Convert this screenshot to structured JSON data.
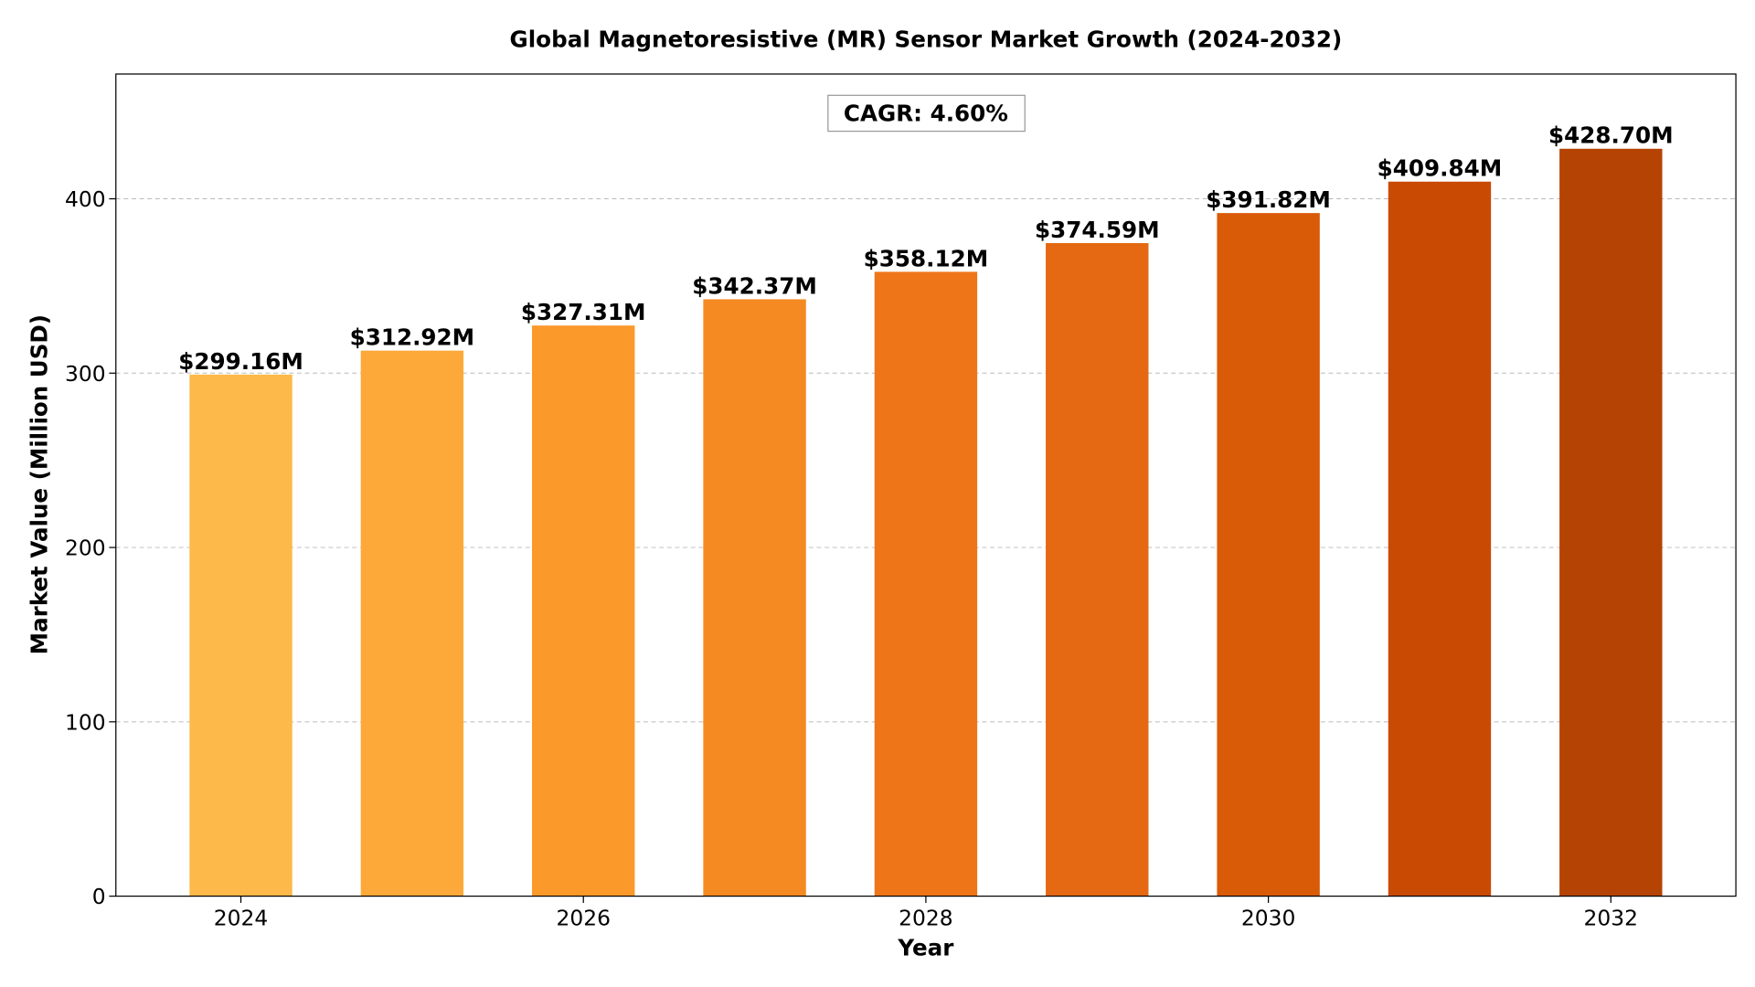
{
  "chart_data": {
    "type": "bar",
    "title": "Global Magnetoresistive (MR) Sensor Market Growth (2024-2032)",
    "xlabel": "Year",
    "ylabel": "Market Value (Million USD)",
    "categories": [
      2024,
      2025,
      2026,
      2027,
      2028,
      2029,
      2030,
      2031,
      2032
    ],
    "values": [
      299.16,
      312.92,
      327.31,
      342.37,
      358.12,
      374.59,
      391.82,
      409.84,
      428.7
    ],
    "data_labels": [
      "$299.16M",
      "$312.92M",
      "$327.31M",
      "$342.37M",
      "$358.12M",
      "$374.59M",
      "$391.82M",
      "$409.84M",
      "$428.70M"
    ],
    "colors": [
      "#FDB94A",
      "#FCA93A",
      "#FB992A",
      "#F58A22",
      "#EE7619",
      "#E46912",
      "#D95A07",
      "#C94A02",
      "#B54304"
    ],
    "xlim": [
      2023.27,
      2032.73
    ],
    "ylim": [
      0,
      471.57
    ],
    "xticks": [
      2024,
      2026,
      2028,
      2030,
      2032
    ],
    "xtick_labels": [
      "2024",
      "2026",
      "2028",
      "2030",
      "2032"
    ],
    "yticks": [
      0,
      100,
      200,
      300,
      400
    ],
    "ytick_labels": [
      "0",
      "100",
      "200",
      "300",
      "400"
    ],
    "grid": "y-axis, dashed",
    "annotation": "CAGR: 4.60%"
  }
}
